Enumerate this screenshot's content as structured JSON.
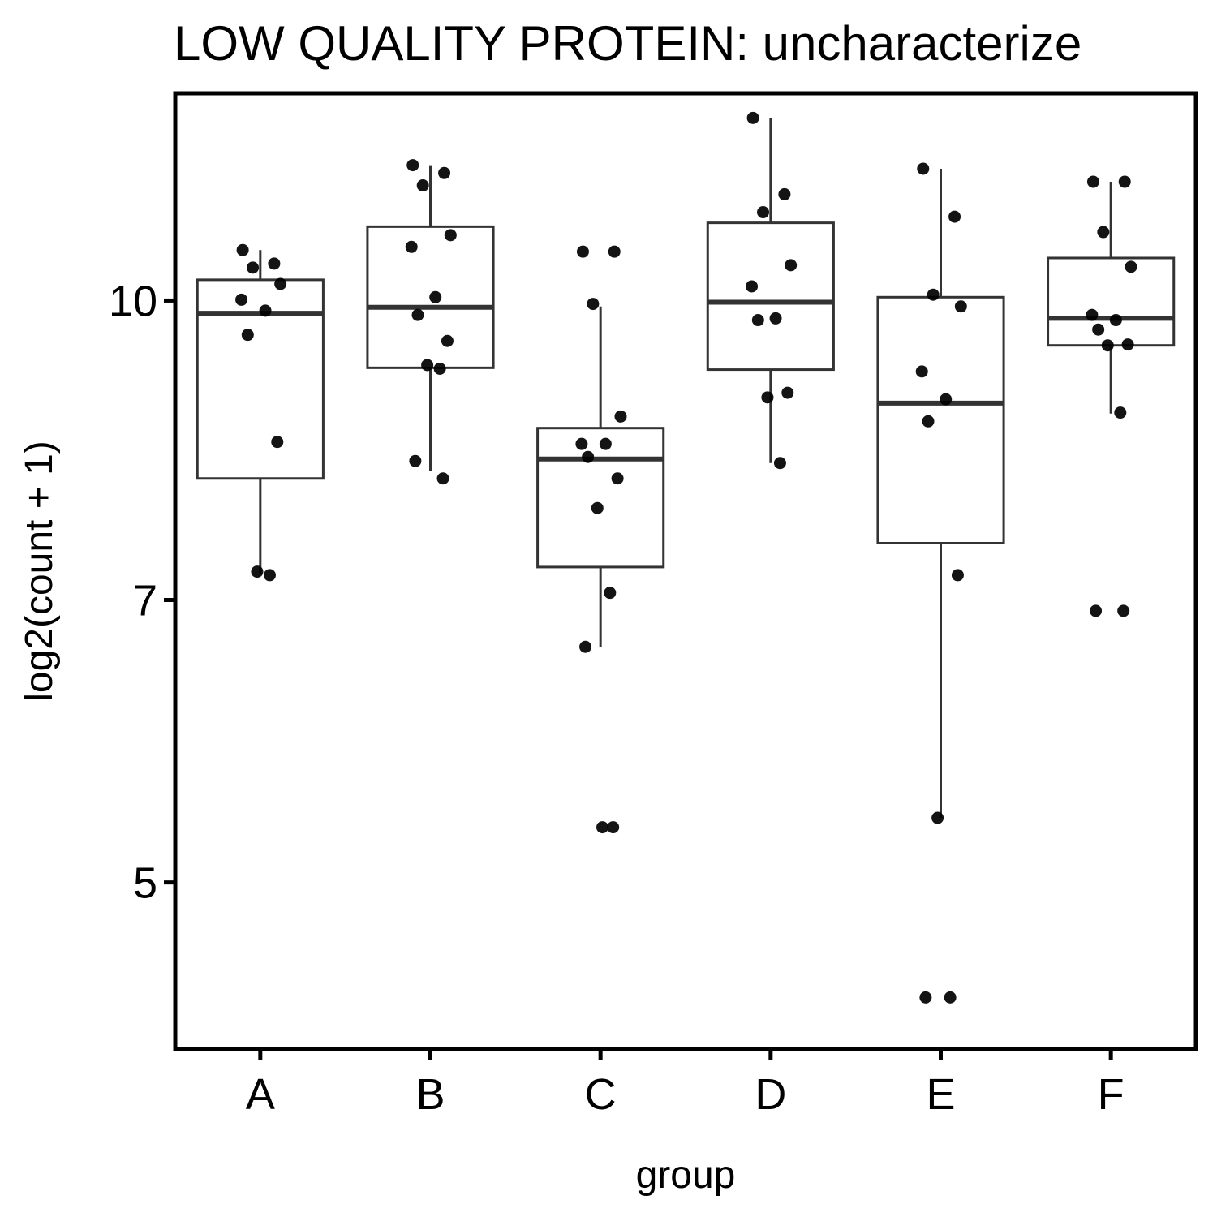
{
  "chart_data": {
    "type": "box",
    "title": "LOW QUALITY PROTEIN: uncharacterize",
    "xlabel": "group",
    "ylabel": "log2(count + 1)",
    "y_scale": "log",
    "ylim": [
      4.1,
      12.8
    ],
    "y_ticks": [
      5,
      7,
      10
    ],
    "y_tick_labels": [
      "5",
      "7",
      "10"
    ],
    "categories": [
      "A",
      "B",
      "C",
      "D",
      "E",
      "F"
    ],
    "boxes": [
      {
        "group": "A",
        "lower_whisker": 7.22,
        "q1": 8.09,
        "median": 9.85,
        "q3": 10.25,
        "upper_whisker": 10.62
      },
      {
        "group": "B",
        "lower_whisker": 8.16,
        "q1": 9.23,
        "median": 9.92,
        "q3": 10.92,
        "upper_whisker": 11.75
      },
      {
        "group": "C",
        "lower_whisker": 6.62,
        "q1": 7.28,
        "median": 8.28,
        "q3": 8.59,
        "upper_whisker": 9.93
      },
      {
        "group": "D",
        "lower_whisker": 8.24,
        "q1": 9.21,
        "median": 9.98,
        "q3": 10.97,
        "upper_whisker": 12.43
      },
      {
        "group": "E",
        "lower_whisker": 5.4,
        "q1": 7.49,
        "median": 8.85,
        "q3": 10.04,
        "upper_whisker": 11.7
      },
      {
        "group": "F",
        "lower_whisker": 8.74,
        "q1": 9.48,
        "median": 9.79,
        "q3": 10.52,
        "upper_whisker": 11.52
      }
    ],
    "points": [
      {
        "group": "A",
        "values": [
          10.62,
          10.45,
          10.4,
          10.2,
          10.01,
          9.88,
          9.6,
          8.45,
          7.24,
          7.21
        ]
      },
      {
        "group": "B",
        "values": [
          11.75,
          11.64,
          11.47,
          10.81,
          10.66,
          10.04,
          9.83,
          9.53,
          9.26,
          9.22,
          8.26,
          8.09
        ]
      },
      {
        "group": "C",
        "values": [
          10.6,
          10.6,
          9.96,
          8.71,
          8.43,
          8.43,
          8.3,
          8.09,
          7.81,
          7.06,
          6.62,
          5.34,
          5.34
        ]
      },
      {
        "group": "D",
        "values": [
          12.43,
          11.35,
          11.11,
          10.43,
          10.17,
          9.79,
          9.77,
          8.96,
          8.91,
          8.24
        ]
      },
      {
        "group": "E",
        "values": [
          11.7,
          11.05,
          10.07,
          9.93,
          9.19,
          8.89,
          8.66,
          7.21,
          5.4,
          4.36,
          4.36
        ]
      },
      {
        "group": "F",
        "values": [
          11.52,
          11.52,
          10.85,
          10.41,
          9.83,
          9.77,
          9.66,
          9.49,
          9.48,
          8.75,
          6.91,
          6.91
        ]
      }
    ],
    "grid": false,
    "legend": "none"
  }
}
